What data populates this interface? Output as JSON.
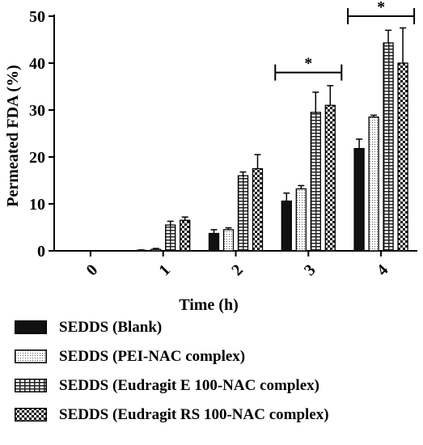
{
  "chart_data": {
    "type": "bar",
    "xlabel": "Time (h)",
    "ylabel": "Permeated FDA (%)",
    "ylim": [
      0,
      50
    ],
    "yticks": [
      0,
      10,
      20,
      30,
      40,
      50
    ],
    "categories": [
      "0",
      "1",
      "2",
      "3",
      "4"
    ],
    "series": [
      {
        "name": "SEDDS (Blank)",
        "pattern": "solid",
        "values": [
          0,
          0.1,
          3.7,
          10.6,
          21.8
        ],
        "errors": [
          0,
          0.1,
          0.8,
          1.7,
          2.0
        ]
      },
      {
        "name": "SEDDS (PEI-NAC complex)",
        "pattern": "dots",
        "values": [
          0,
          0.3,
          4.5,
          13.2,
          28.5
        ],
        "errors": [
          0,
          0.2,
          0.4,
          0.7,
          0.4
        ]
      },
      {
        "name": "SEDDS (Eudragit E 100-NAC complex)",
        "pattern": "grid",
        "values": [
          0,
          5.5,
          16.0,
          29.5,
          44.3
        ],
        "errors": [
          0,
          0.8,
          0.8,
          4.3,
          2.7
        ]
      },
      {
        "name": "SEDDS (Eudragit RS 100-NAC complex)",
        "pattern": "checker",
        "values": [
          0,
          6.5,
          17.5,
          31.0,
          40.0
        ],
        "errors": [
          0,
          0.7,
          3.0,
          4.2,
          7.5
        ]
      }
    ],
    "significance": [
      {
        "label": "*",
        "category": "3",
        "y": 38
      },
      {
        "label": "*",
        "category": "4",
        "y": 50
      }
    ],
    "legend_position": "bottom",
    "grid": false
  }
}
